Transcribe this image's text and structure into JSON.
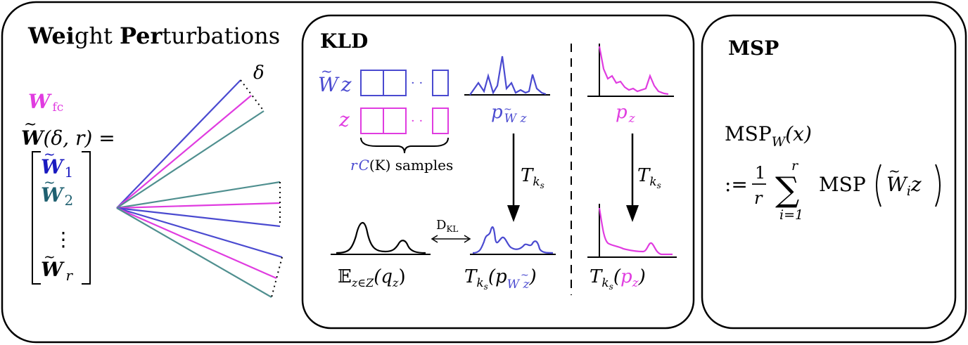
{
  "colors": {
    "blue": "#4a4ad0",
    "magenta": "#e03ce0",
    "teal": "#4f8f8f",
    "darkblue": "#1a1ac0",
    "darkteal": "#1f6070",
    "black": "#000000"
  },
  "weight_panel": {
    "title_bold_1": "Wei",
    "title_rest_1": "ght ",
    "title_bold_2": "Per",
    "title_rest_2": "turbations",
    "w_fc": "W",
    "w_fc_sub": "fc",
    "w_eq_w": "W",
    "w_eq_args": "(δ, r) =",
    "vec_w": "W",
    "vec_sub_1": "1",
    "vec_sub_2": "2",
    "vec_sub_r": "r",
    "vdots": "⋮",
    "delta": "δ"
  },
  "kld_panel": {
    "title": "KLD",
    "row_wz": "W",
    "row_wz_z": "z",
    "row_z": "z",
    "samples_r": "r",
    "samples_c": "C",
    "samples_k": "(K) samples",
    "dots": "· ·",
    "p_wz": "p",
    "p_wz_sub": "W z",
    "p_z": "p",
    "p_z_sub": "z",
    "transform": "T",
    "transform_sub": "k",
    "transform_subsub": "s",
    "dkl": "D",
    "dkl_sub": "KL",
    "expect": "𝔼",
    "expect_sub": "z∈Z",
    "expect_arg": "(q",
    "expect_arg_sub": "z",
    "expect_close": ")",
    "bottom_wz_open": "(p",
    "bottom_wz_sub": "W z",
    "bottom_close": ")",
    "bottom_z_open": "(",
    "bottom_z_p": "p",
    "bottom_z_sub": "z"
  },
  "msp_panel": {
    "title": "MSP",
    "lhs": "MSP",
    "lhs_sub": "W",
    "lhs_arg": "(x)",
    "assign": ":=",
    "frac_num": "1",
    "frac_den": "r",
    "sum": "∑",
    "sum_top": "r",
    "sum_bottom": "i=1",
    "msp_fn": "MSP",
    "arg_w": "W",
    "arg_sub": "i",
    "arg_z": "z"
  }
}
